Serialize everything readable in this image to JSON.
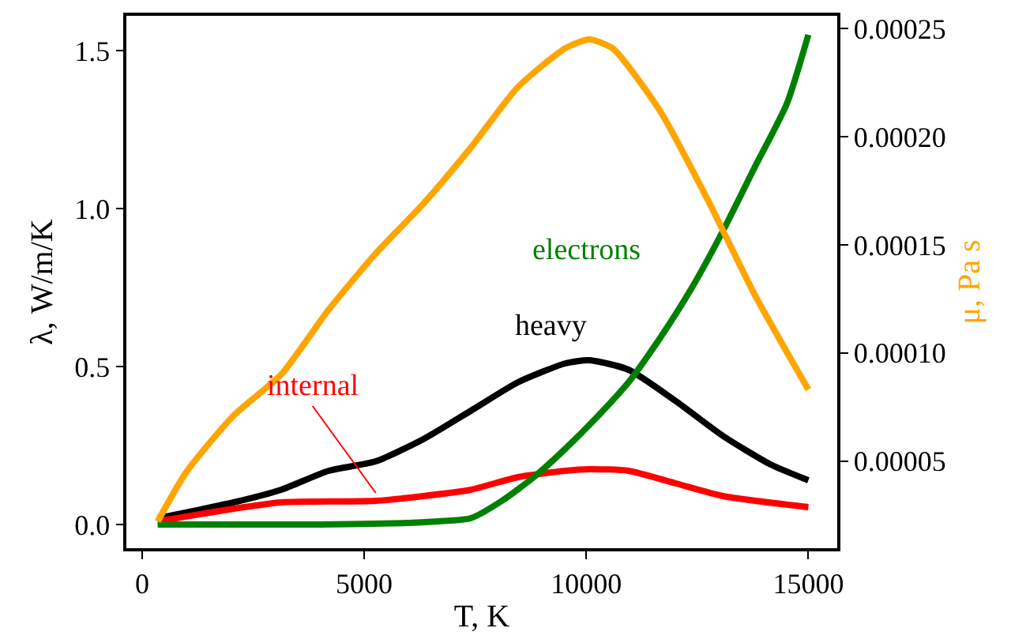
{
  "chart_data": {
    "type": "line",
    "xlabel": "T, K",
    "ylabel": "λ, W/m/K",
    "y2label": "μ, Pa s",
    "xlim": [
      -355,
      15650
    ],
    "xticks": [
      0,
      5000,
      10000,
      15000
    ],
    "ylim": [
      -0.075,
      1.61
    ],
    "yticks": [
      {
        "value": 0,
        "label": "0.0"
      },
      {
        "value": 0.5,
        "label": "0.5"
      },
      {
        "value": 1,
        "label": "1.0"
      },
      {
        "value": 1.5,
        "label": "1.5"
      }
    ],
    "y2lim": [
      9.6e-06,
      0.000256
    ],
    "y2ticks": [
      {
        "value": 5e-05,
        "label": "0.00005"
      },
      {
        "value": 0.0001,
        "label": "0.00010"
      },
      {
        "value": 0.00015,
        "label": "0.00015"
      },
      {
        "value": 0.0002,
        "label": "0.00020"
      },
      {
        "value": 0.00025,
        "label": "0.00025"
      }
    ],
    "grid": false,
    "legend": false,
    "marker": "none",
    "line_style": "solid",
    "series": [
      {
        "axis": "y2",
        "color": "#ffa500",
        "x": [
          350,
          1000,
          2060,
          3130,
          4200,
          5260,
          6330,
          7400,
          8460,
          9530,
          10060,
          10590,
          11660,
          12730,
          13790,
          15000
        ],
        "values": [
          2.2e-05,
          4.5e-05,
          7.1e-05,
          9e-05,
          0.00012,
          0.000146,
          0.000169,
          0.000195,
          0.000223,
          0.000241,
          0.000245,
          0.000241,
          0.000212,
          0.000171,
          0.000127,
          8.3e-05
        ]
      },
      {
        "name": "heavy",
        "color": "#000000",
        "x": [
          350,
          2060,
          3130,
          4200,
          5260,
          6330,
          7400,
          8460,
          9530,
          10060,
          10950,
          12020,
          13080,
          14150,
          15000
        ],
        "values": [
          0.02,
          0.07,
          0.11,
          0.17,
          0.2,
          0.27,
          0.36,
          0.45,
          0.51,
          0.52,
          0.49,
          0.39,
          0.28,
          0.19,
          0.14
        ]
      },
      {
        "name": "internal",
        "color": "#ff0000",
        "x": [
          350,
          2060,
          3130,
          5260,
          6330,
          7400,
          8460,
          9530,
          10060,
          10950,
          12020,
          13080,
          15000
        ],
        "values": [
          0.01,
          0.05,
          0.07,
          0.075,
          0.09,
          0.11,
          0.15,
          0.17,
          0.175,
          0.17,
          0.13,
          0.09,
          0.055
        ]
      },
      {
        "name": "electrons",
        "color": "#008000",
        "x": [
          350,
          2000,
          4000,
          6000,
          6680,
          7400,
          8100,
          8820,
          9530,
          10240,
          10950,
          11660,
          12380,
          13080,
          13790,
          14510,
          15000
        ],
        "values": [
          0,
          0,
          0,
          0.005,
          0.01,
          0.02,
          0.075,
          0.15,
          0.24,
          0.34,
          0.45,
          0.59,
          0.75,
          0.93,
          1.13,
          1.33,
          1.55
        ]
      }
    ]
  }
}
